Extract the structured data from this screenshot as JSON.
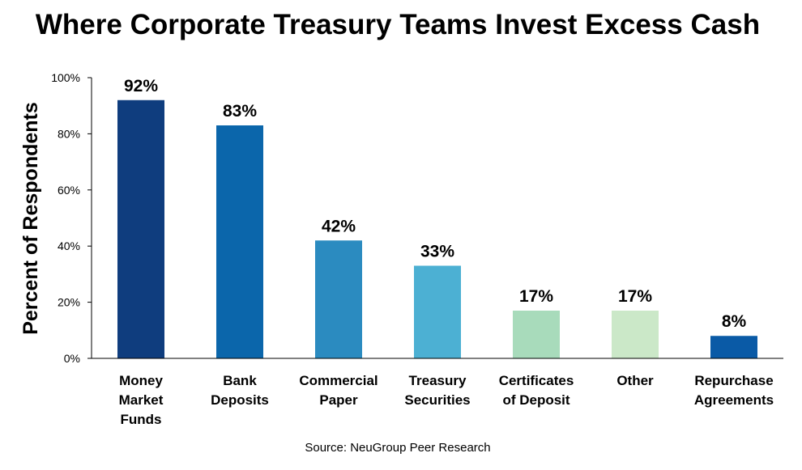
{
  "chart_data": {
    "type": "bar",
    "title": "Where Corporate Treasury Teams Invest Excess Cash",
    "ylabel": "Percent of Respondents",
    "xlabel": "",
    "source": "Source: NeuGroup Peer Research",
    "ylim": [
      0,
      100
    ],
    "yticks": [
      {
        "value": 0,
        "label": "0%"
      },
      {
        "value": 20,
        "label": "20%"
      },
      {
        "value": 40,
        "label": "40%"
      },
      {
        "value": 60,
        "label": "60%"
      },
      {
        "value": 80,
        "label": "80%"
      },
      {
        "value": 100,
        "label": "100%"
      }
    ],
    "grid": false,
    "legend": "none",
    "bars": [
      {
        "category": [
          "Money",
          "Market",
          "Funds"
        ],
        "value": 92,
        "label": "92%",
        "color": "#0f3d7e"
      },
      {
        "category": [
          "Bank",
          "Deposits"
        ],
        "value": 83,
        "label": "83%",
        "color": "#0b66ab"
      },
      {
        "category": [
          "Commercial",
          "Paper"
        ],
        "value": 42,
        "label": "42%",
        "color": "#2b8bc0"
      },
      {
        "category": [
          "Treasury",
          "Securities"
        ],
        "value": 33,
        "label": "33%",
        "color": "#4cb0d3"
      },
      {
        "category": [
          "Certificates",
          "of Deposit"
        ],
        "value": 17,
        "label": "17%",
        "color": "#a8dbbb"
      },
      {
        "category": [
          "Other"
        ],
        "value": 17,
        "label": "17%",
        "color": "#cbe8c8"
      },
      {
        "category": [
          "Repurchase",
          "Agreements"
        ],
        "value": 8,
        "label": "8%",
        "color": "#0a5aa6"
      }
    ]
  }
}
